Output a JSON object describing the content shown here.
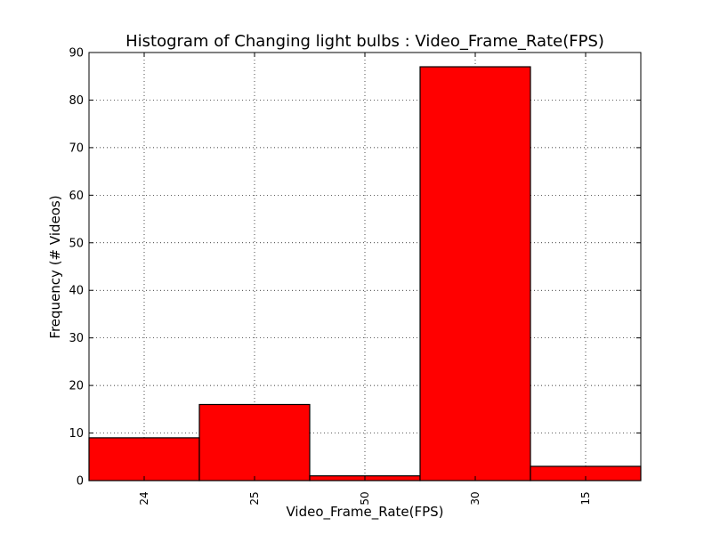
{
  "chart_data": {
    "type": "bar",
    "title": "Histogram of Changing light bulbs : Video_Frame_Rate(FPS)",
    "xlabel": "Video_Frame_Rate(FPS)",
    "ylabel": "Frequency (# Videos)",
    "categories": [
      "24",
      "25",
      "50",
      "30",
      "15"
    ],
    "values": [
      9,
      16,
      1,
      87,
      3
    ],
    "ylim": [
      0,
      90
    ],
    "yticks": [
      0,
      10,
      20,
      30,
      40,
      50,
      60,
      70,
      80,
      90
    ],
    "ytick_labels": [
      "0",
      "10",
      "20",
      "30",
      "40",
      "50",
      "60",
      "70",
      "80",
      "90"
    ],
    "grid": true,
    "bar_color": "#ff0000",
    "edge_color": "#000000"
  }
}
